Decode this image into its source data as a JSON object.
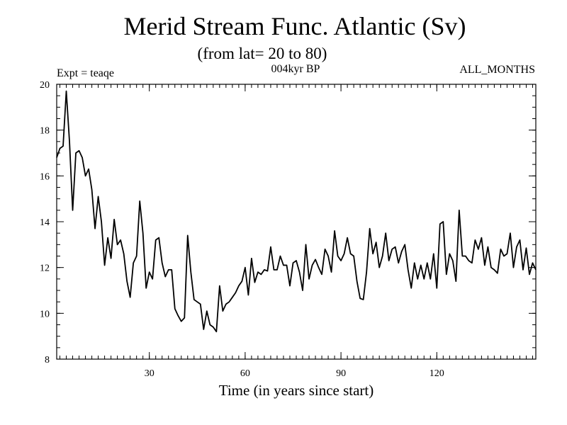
{
  "chart_data": {
    "type": "line",
    "title": "Merid Stream Func. Atlantic (Sv)",
    "subtitle": "(from lat= 20 to 80)",
    "left_label": "Expt = teaqe",
    "center_label": "004kyr BP",
    "right_label": "ALL_MONTHS",
    "xlabel": "Time (in years since start)",
    "ylabel": "",
    "xlim": [
      1,
      151
    ],
    "ylim": [
      8,
      20
    ],
    "x_ticks": [
      30,
      60,
      90,
      120
    ],
    "x_tick_labels": [
      "30",
      "60",
      "90",
      "120"
    ],
    "y_ticks": [
      8,
      10,
      12,
      14,
      16,
      18,
      20
    ],
    "y_tick_labels": [
      "8",
      "10",
      "12",
      "14",
      "16",
      "18",
      "20"
    ],
    "x_minor_step": 2,
    "y_minor_step": 0.5,
    "line_color": "#000000",
    "series": [
      {
        "name": "teaqe",
        "x_start": 1,
        "x_step": 1,
        "values": [
          16.8,
          17.2,
          17.3,
          19.7,
          17.5,
          14.5,
          17.0,
          17.1,
          16.8,
          16.0,
          16.3,
          15.4,
          13.7,
          15.1,
          14.0,
          12.1,
          13.3,
          12.4,
          14.1,
          13.0,
          13.2,
          12.6,
          11.4,
          10.7,
          12.2,
          12.5,
          14.9,
          13.5,
          11.1,
          11.8,
          11.5,
          13.2,
          13.3,
          12.2,
          11.6,
          11.9,
          11.9,
          10.2,
          9.9,
          9.65,
          9.8,
          13.4,
          11.8,
          10.6,
          10.5,
          10.4,
          9.3,
          10.1,
          9.5,
          9.4,
          9.2,
          11.2,
          10.1,
          10.4,
          10.5,
          10.7,
          10.9,
          11.2,
          11.4,
          12.0,
          10.8,
          12.4,
          11.35,
          11.8,
          11.7,
          11.9,
          11.85,
          12.9,
          11.9,
          11.9,
          12.5,
          12.1,
          12.1,
          11.2,
          12.2,
          12.3,
          11.8,
          11.0,
          13.0,
          11.5,
          12.1,
          12.35,
          12.0,
          11.7,
          12.8,
          12.5,
          11.8,
          13.6,
          12.5,
          12.3,
          12.6,
          13.3,
          12.6,
          12.5,
          11.4,
          10.65,
          10.6,
          11.8,
          13.7,
          12.6,
          13.1,
          12.0,
          12.5,
          13.5,
          12.3,
          12.8,
          12.9,
          12.2,
          12.7,
          13.0,
          11.9,
          11.1,
          12.2,
          11.5,
          12.1,
          11.5,
          12.2,
          11.5,
          12.6,
          11.1,
          13.9,
          14.0,
          11.7,
          12.6,
          12.3,
          11.4,
          14.5,
          12.5,
          12.5,
          12.3,
          12.2,
          13.2,
          12.8,
          13.3,
          12.1,
          12.9,
          12.0,
          11.9,
          11.75,
          12.8,
          12.5,
          12.6,
          13.5,
          12.0,
          12.9,
          13.2,
          11.9,
          12.85,
          11.7,
          12.2,
          11.9
        ]
      }
    ]
  }
}
